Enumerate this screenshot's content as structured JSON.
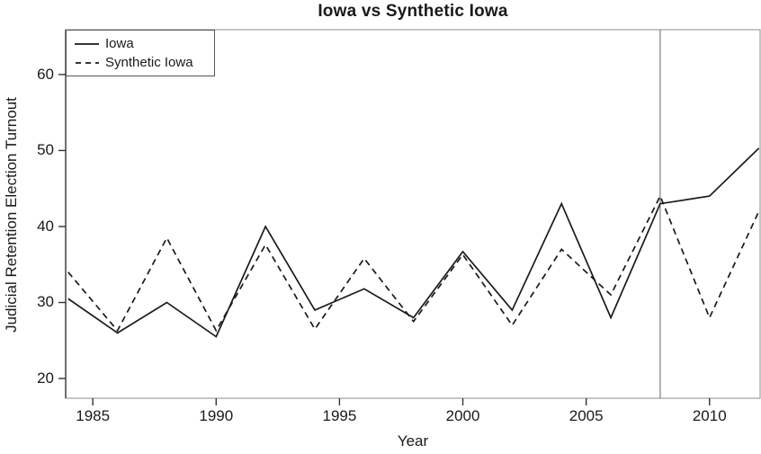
{
  "chart_data": {
    "type": "line",
    "title": "Iowa vs Synthetic Iowa",
    "xlabel": "Year",
    "ylabel": "Judicial Retention Election Turnout",
    "x": [
      1984,
      1986,
      1988,
      1990,
      1992,
      1994,
      1996,
      1998,
      2000,
      2002,
      2004,
      2006,
      2008,
      2010,
      2012
    ],
    "series": [
      {
        "name": "Iowa",
        "style": "solid",
        "values": [
          30.5,
          26,
          30,
          25.5,
          40,
          29,
          31.8,
          28,
          36.7,
          29,
          43,
          28,
          43,
          44,
          50.3
        ]
      },
      {
        "name": "Synthetic Iowa",
        "style": "dashed",
        "values": [
          34,
          26.3,
          38.5,
          26.3,
          37.6,
          26.5,
          35.8,
          27.5,
          36.3,
          27,
          37,
          31,
          44,
          28,
          42
        ]
      }
    ],
    "x_ticks": [
      1985,
      1990,
      1995,
      2000,
      2005,
      2010
    ],
    "y_ticks": [
      20,
      30,
      40,
      50,
      60
    ],
    "xlim": [
      1983.9,
      2012.05
    ],
    "ylim": [
      17.4,
      65.9
    ],
    "vline_x": 2008,
    "legend_position": "top-left",
    "grid": false,
    "line_color": "#1a1a1a",
    "axis_color": "#8c8c8c",
    "tick_color": "#333333",
    "vline_color": "#666666"
  }
}
